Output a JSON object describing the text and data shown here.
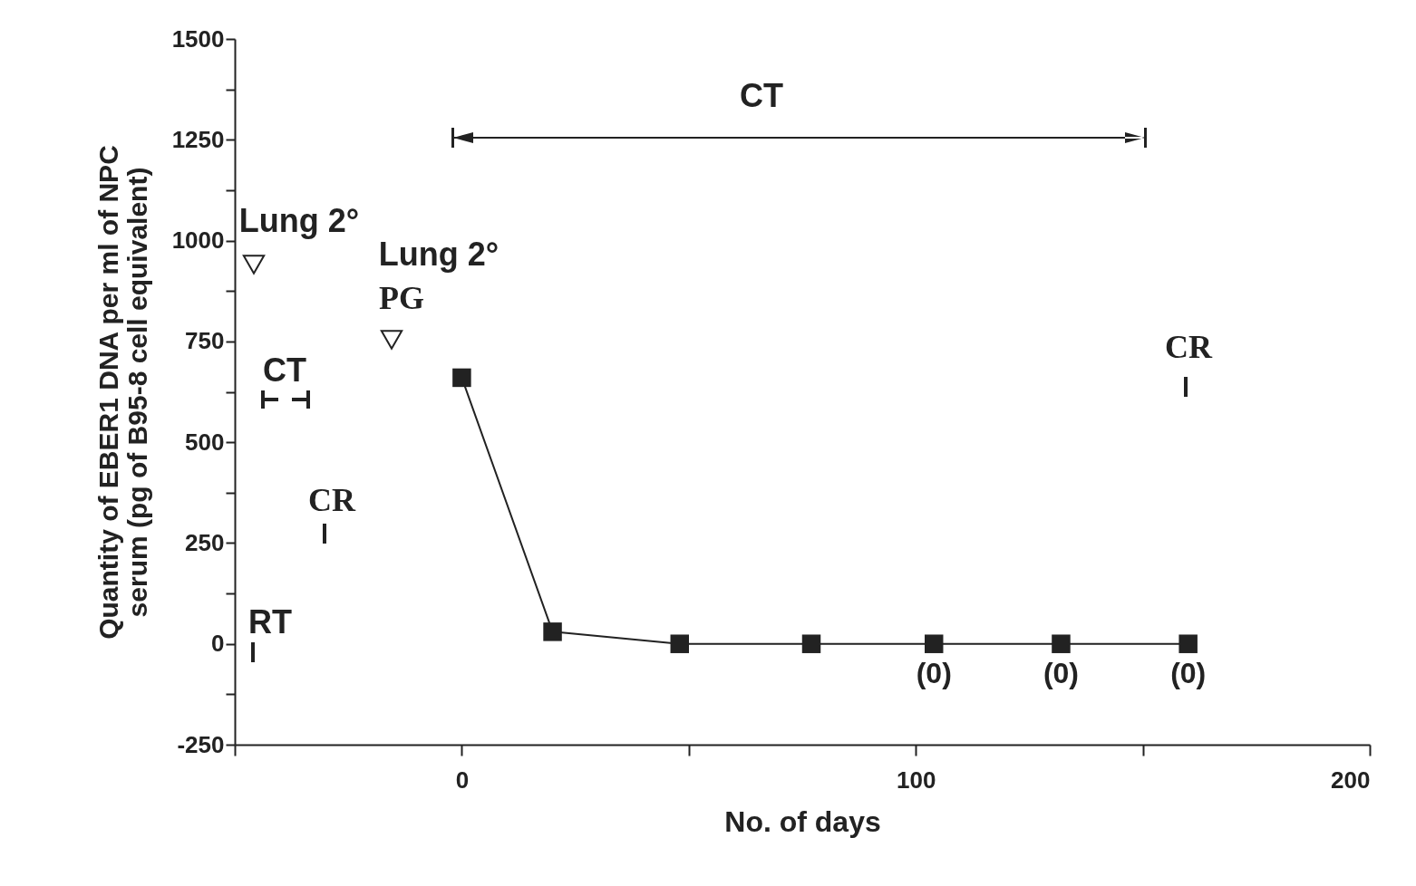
{
  "chart_data": {
    "type": "line",
    "xlabel": "No. of days",
    "ylabel": "Quantity of EBER1 DNA per ml of NPC\nserum (pg of B95-8 cell equivalent)",
    "x": [
      0,
      20,
      48,
      77,
      104,
      132,
      160
    ],
    "series": [
      {
        "color": "#222222",
        "values": [
          660,
          30,
          0,
          0,
          0,
          0,
          0
        ],
        "value_labels": [
          null,
          null,
          null,
          null,
          "(0)",
          "(0)",
          "(0)"
        ]
      }
    ],
    "marker": "square",
    "line_style": "solid",
    "grid": false,
    "xlim": [
      -50,
      200
    ],
    "xticks": [
      {
        "value": -50,
        "label": null
      },
      0,
      {
        "value": 50,
        "label": null
      },
      100,
      {
        "value": 150,
        "label": null
      },
      200
    ],
    "ylim": [
      -250,
      1500
    ],
    "yticks": [
      -250,
      {
        "value": -125,
        "label": null
      },
      0,
      {
        "value": 125,
        "label": null
      },
      250,
      {
        "value": 375,
        "label": null
      },
      500,
      {
        "value": 625,
        "label": null
      },
      750,
      {
        "value": 875,
        "label": null
      },
      1000,
      {
        "value": 1125,
        "label": null
      },
      1250,
      {
        "value": 1375,
        "label": null
      },
      1500
    ],
    "annotations": [
      "Lung 2°",
      "Lung 2°",
      "PG",
      "CT",
      "CR",
      "RT",
      "CR",
      "CT"
    ]
  }
}
